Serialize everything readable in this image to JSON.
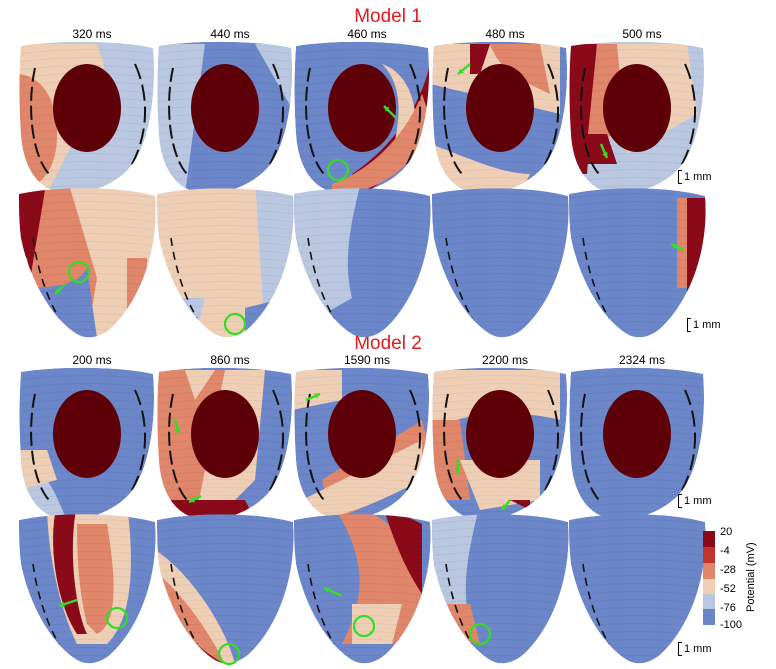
{
  "models": [
    {
      "title": "Model 1",
      "times": [
        "320 ms",
        "440 ms",
        "460 ms",
        "480 ms",
        "500 ms"
      ]
    },
    {
      "title": "Model 2",
      "times": [
        "200 ms",
        "860 ms",
        "1590 ms",
        "2200 ms",
        "2324 ms"
      ]
    }
  ],
  "scale_label": "1 mm",
  "colorbar": {
    "title": "Potential (mV)",
    "ticks": [
      "20",
      "-4",
      "-28",
      "-52",
      "-76",
      "-100"
    ],
    "colors": [
      "#8b0a1a",
      "#c2332e",
      "#e0866a",
      "#eecfb6",
      "#b9c7e0",
      "#6b86c9"
    ]
  }
}
